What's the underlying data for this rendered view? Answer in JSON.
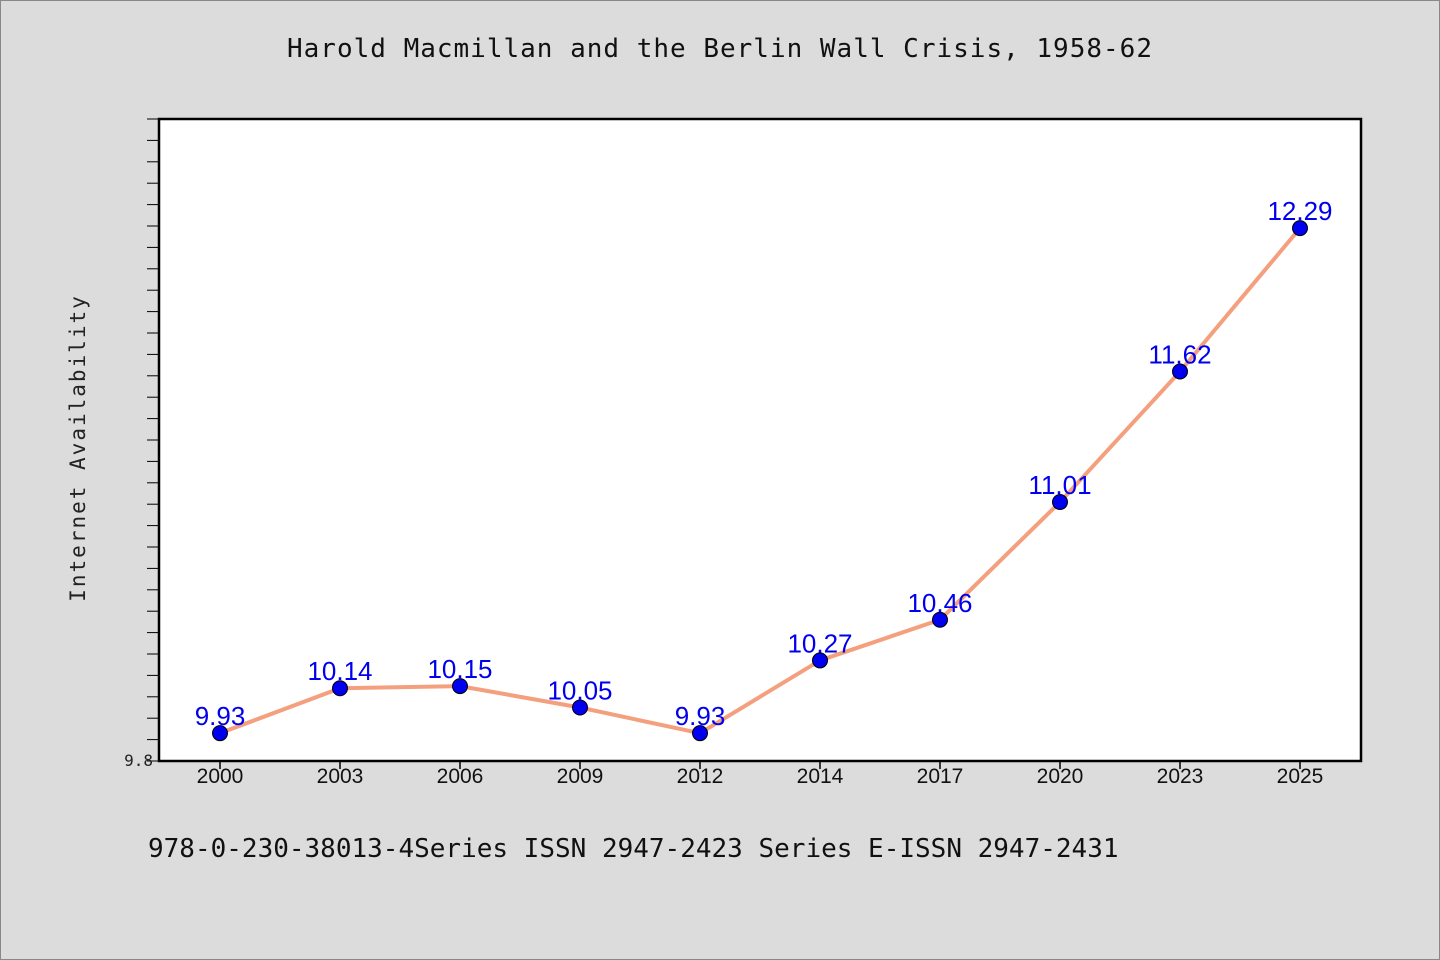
{
  "chart_data": {
    "type": "line",
    "title": "Harold Macmillan and the Berlin Wall Crisis, 1958-62",
    "ylabel": "Internet Availability",
    "xlabel": "",
    "categories": [
      "2000",
      "2003",
      "2006",
      "2009",
      "2012",
      "2014",
      "2017",
      "2020",
      "2023",
      "2025"
    ],
    "series": [
      {
        "values": [
          9.93,
          10.14,
          10.15,
          10.05,
          9.93,
          10.27,
          10.46,
          11.01,
          11.62,
          12.29
        ]
      }
    ],
    "data_labels": [
      "9.93",
      "10.14",
      "10.15",
      "10.05",
      "9.93",
      "10.27",
      "10.46",
      "11.01",
      "11.62",
      "12.29"
    ],
    "ylim": [
      9.8,
      12.8
    ],
    "y_tick_labels": [
      "9.8"
    ],
    "grid": false,
    "colors": {
      "line": "#f4a07e",
      "marker": "#0000ee",
      "data_label": "#0000ee",
      "plot_bg": "#ffffff",
      "page_bg": "#dcdcdc"
    }
  },
  "footer": "978-0-230-38013-4Series ISSN 2947-2423 Series E-ISSN 2947-2431"
}
